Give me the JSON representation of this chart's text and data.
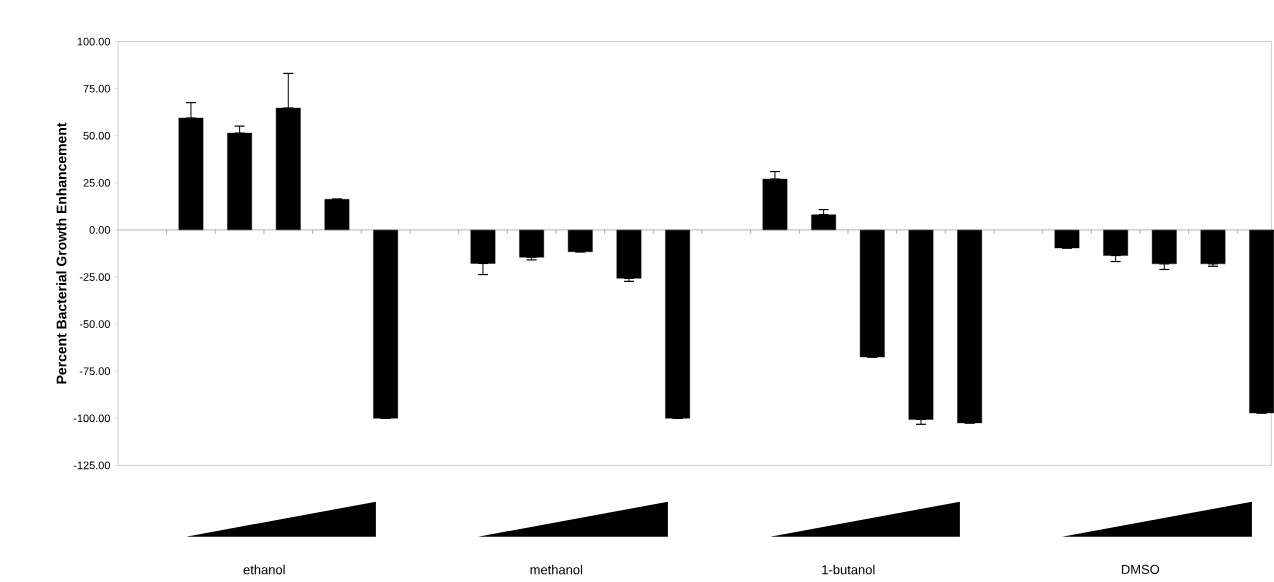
{
  "chart_data": {
    "type": "bar",
    "ylabel": "Percent Bacterial Growth Enhancement",
    "categories": [
      null,
      null,
      "ethanol",
      null,
      null,
      null,
      null,
      null,
      "methanol",
      null,
      null,
      null,
      null,
      null,
      "1-butanol",
      null,
      null,
      null,
      null,
      null,
      "DMSO",
      null,
      null
    ],
    "values": [
      59.4,
      51.4,
      64.7,
      16.3,
      -100,
      null,
      -17.8,
      -14.5,
      -11.6,
      -25.7,
      -100,
      null,
      27.0,
      8.1,
      -67.5,
      -100.6,
      -102.5,
      null,
      -9.6,
      -13.6,
      -18.0,
      -18.0,
      -97.2
    ],
    "errors": [
      [
        59.4,
        67.6
      ],
      [
        51.4,
        55.1
      ],
      [
        64.7,
        83.1
      ],
      null,
      null,
      null,
      [
        -23.7,
        -17.8
      ],
      [
        -15.9,
        -14.5
      ],
      null,
      [
        -27.3,
        -25.7
      ],
      null,
      null,
      [
        27.0,
        31.0
      ],
      [
        8.1,
        10.8
      ],
      null,
      [
        -103.2,
        -100.6
      ],
      null,
      null,
      null,
      [
        -16.8,
        -13.6
      ],
      [
        -21.0,
        -18.0
      ],
      [
        -19.3,
        -18.0
      ],
      null
    ],
    "color": "#000000",
    "ylim": [
      -125,
      100
    ],
    "yticks": [
      {
        "value": -125,
        "label": "-125.00"
      },
      {
        "value": -100,
        "label": "-100.00"
      },
      {
        "value": -75,
        "label": "-75.00"
      },
      {
        "value": -50,
        "label": "-50.00"
      },
      {
        "value": -25,
        "label": "-25.00"
      },
      {
        "value": 0,
        "label": "0.00"
      },
      {
        "value": 25,
        "label": "25.00"
      },
      {
        "value": 50,
        "label": "50.00"
      },
      {
        "value": 75,
        "label": "75.00"
      },
      {
        "value": 100,
        "label": "100.00"
      }
    ]
  }
}
